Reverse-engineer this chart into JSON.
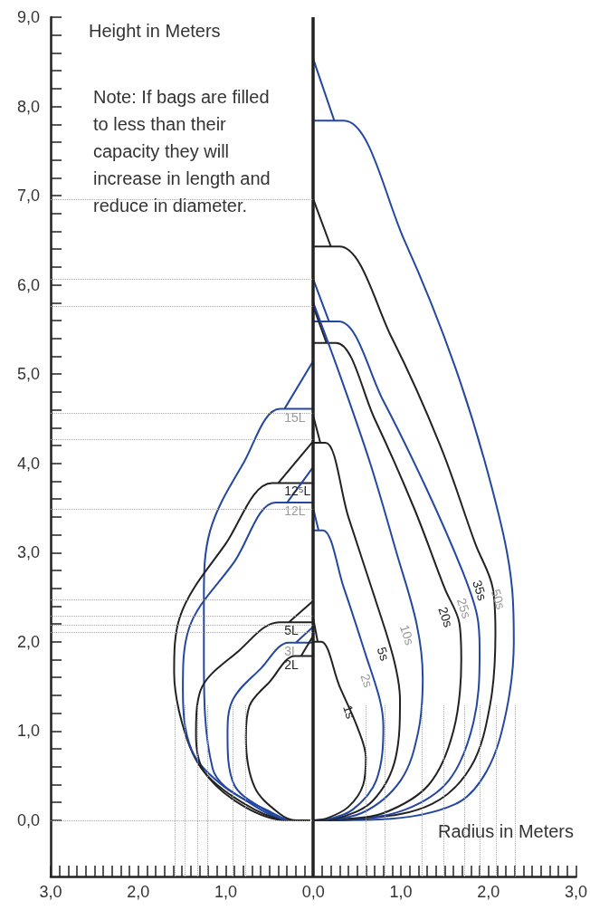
{
  "chart_data": {
    "type": "line",
    "ylabel": "Height in Meters",
    "xlabel": "Radius in Meters",
    "annotations": [
      "Note: If bags are filled to less than their capacity they will increase in length and reduce in diameter."
    ],
    "xlim": [
      -3,
      3
    ],
    "ylim": [
      -0.63,
      9
    ],
    "xticks": [
      {
        "value": -3,
        "label": "3,0"
      },
      {
        "value": -2.9,
        "label": null
      },
      {
        "value": -2.8,
        "label": null
      },
      {
        "value": -2.7,
        "label": null
      },
      {
        "value": -2.6,
        "label": null
      },
      {
        "value": -2.5,
        "label": null
      },
      {
        "value": -2.4,
        "label": null
      },
      {
        "value": -2.3,
        "label": null
      },
      {
        "value": -2.2,
        "label": null
      },
      {
        "value": -2.1,
        "label": null
      },
      {
        "value": -2,
        "label": "2,0"
      },
      {
        "value": -1.9,
        "label": null
      },
      {
        "value": -1.8,
        "label": null
      },
      {
        "value": -1.7,
        "label": null
      },
      {
        "value": -1.6,
        "label": null
      },
      {
        "value": -1.5,
        "label": null
      },
      {
        "value": -1.4,
        "label": null
      },
      {
        "value": -1.3,
        "label": null
      },
      {
        "value": -1.2,
        "label": null
      },
      {
        "value": -1.1,
        "label": null
      },
      {
        "value": -1,
        "label": "1,0"
      },
      {
        "value": -0.9,
        "label": null
      },
      {
        "value": -0.8,
        "label": null
      },
      {
        "value": -0.7,
        "label": null
      },
      {
        "value": -0.6,
        "label": null
      },
      {
        "value": -0.5,
        "label": null
      },
      {
        "value": -0.4,
        "label": null
      },
      {
        "value": -0.3,
        "label": null
      },
      {
        "value": -0.2,
        "label": null
      },
      {
        "value": -0.1,
        "label": null
      },
      {
        "value": 0,
        "label": "0,0"
      },
      {
        "value": 0.1,
        "label": null
      },
      {
        "value": 0.2,
        "label": null
      },
      {
        "value": 0.3,
        "label": null
      },
      {
        "value": 0.4,
        "label": null
      },
      {
        "value": 0.5,
        "label": null
      },
      {
        "value": 0.6,
        "label": null
      },
      {
        "value": 0.7,
        "label": null
      },
      {
        "value": 0.8,
        "label": null
      },
      {
        "value": 0.9,
        "label": null
      },
      {
        "value": 1,
        "label": "1,0"
      },
      {
        "value": 1.1,
        "label": null
      },
      {
        "value": 1.2,
        "label": null
      },
      {
        "value": 1.3,
        "label": null
      },
      {
        "value": 1.4,
        "label": null
      },
      {
        "value": 1.5,
        "label": null
      },
      {
        "value": 1.6,
        "label": null
      },
      {
        "value": 1.7,
        "label": null
      },
      {
        "value": 1.8,
        "label": null
      },
      {
        "value": 1.9,
        "label": null
      },
      {
        "value": 2,
        "label": "2,0"
      },
      {
        "value": 2.1,
        "label": null
      },
      {
        "value": 2.2,
        "label": null
      },
      {
        "value": 2.3,
        "label": null
      },
      {
        "value": 2.4,
        "label": null
      },
      {
        "value": 2.5,
        "label": null
      },
      {
        "value": 2.6,
        "label": null
      },
      {
        "value": 2.7,
        "label": null
      },
      {
        "value": 2.8,
        "label": null
      },
      {
        "value": 2.9,
        "label": null
      },
      {
        "value": 3,
        "label": "3,0"
      }
    ],
    "yticks": [
      {
        "value": 0,
        "label": "0,0"
      },
      {
        "value": 0.2,
        "label": null
      },
      {
        "value": 0.4,
        "label": null
      },
      {
        "value": 0.6,
        "label": null
      },
      {
        "value": 0.8,
        "label": null
      },
      {
        "value": 1,
        "label": "1,0"
      },
      {
        "value": 1.2,
        "label": null
      },
      {
        "value": 1.4,
        "label": null
      },
      {
        "value": 1.6,
        "label": null
      },
      {
        "value": 1.8,
        "label": null
      },
      {
        "value": 2,
        "label": "2,0"
      },
      {
        "value": 2.2,
        "label": null
      },
      {
        "value": 2.4,
        "label": null
      },
      {
        "value": 2.6,
        "label": null
      },
      {
        "value": 2.8,
        "label": null
      },
      {
        "value": 3,
        "label": "3,0"
      },
      {
        "value": 3.2,
        "label": null
      },
      {
        "value": 3.4,
        "label": null
      },
      {
        "value": 3.6,
        "label": null
      },
      {
        "value": 3.8,
        "label": null
      },
      {
        "value": 4,
        "label": "4,0"
      },
      {
        "value": 4.2,
        "label": null
      },
      {
        "value": 4.4,
        "label": null
      },
      {
        "value": 4.6,
        "label": null
      },
      {
        "value": 4.8,
        "label": null
      },
      {
        "value": 5,
        "label": "5,0"
      },
      {
        "value": 5.2,
        "label": null
      },
      {
        "value": 5.4,
        "label": null
      },
      {
        "value": 5.6,
        "label": null
      },
      {
        "value": 5.8,
        "label": null
      },
      {
        "value": 6,
        "label": "6,0"
      },
      {
        "value": 6.2,
        "label": null
      },
      {
        "value": 6.4,
        "label": null
      },
      {
        "value": 6.6,
        "label": null
      },
      {
        "value": 6.8,
        "label": null
      },
      {
        "value": 7,
        "label": "7,0"
      },
      {
        "value": 7.2,
        "label": null
      },
      {
        "value": 7.4,
        "label": null
      },
      {
        "value": 7.6,
        "label": null
      },
      {
        "value": 7.8,
        "label": null
      },
      {
        "value": 8,
        "label": "8,0"
      },
      {
        "value": 8.2,
        "label": null
      },
      {
        "value": 8.4,
        "label": null
      },
      {
        "value": 8.6,
        "label": null
      },
      {
        "value": 8.8,
        "label": null
      },
      {
        "value": 9,
        "label": "9,0"
      }
    ],
    "series": [
      {
        "name": "50s",
        "color": "#2447a0",
        "x": [
          0,
          0.24,
          0,
          0.35,
          1.04,
          1.62,
          2.06,
          2.27,
          2.29,
          2.2,
          1.98,
          1.62,
          0.76,
          0
        ],
        "values": [
          8.53,
          7.84,
          7.84,
          7.84,
          6.5,
          5.08,
          3.65,
          2.6,
          2.0,
          1.2,
          0.55,
          0.18,
          0.01,
          0
        ]
      },
      {
        "name": "35s",
        "color": "#222222",
        "x": [
          0,
          0.2,
          0,
          0.3,
          0.9,
          1.45,
          1.85,
          2.05,
          2.08,
          2.02,
          1.8,
          1.35,
          0.6,
          0
        ],
        "values": [
          6.96,
          6.43,
          6.43,
          6.43,
          5.4,
          4.2,
          3.1,
          2.6,
          2.1,
          1.3,
          0.6,
          0.18,
          0.02,
          0
        ]
      },
      {
        "name": "25s",
        "color": "#2447a0",
        "x": [
          0,
          0.18,
          0,
          0.29,
          0.8,
          1.3,
          1.7,
          1.87,
          1.9,
          1.83,
          1.55,
          1.05,
          0.4,
          0
        ],
        "values": [
          6.06,
          5.59,
          5.59,
          5.59,
          4.7,
          3.7,
          2.8,
          2.3,
          1.9,
          1.1,
          0.45,
          0.12,
          0.01,
          0
        ]
      },
      {
        "name": "20s",
        "color": "#222222",
        "x": [
          0,
          0.15,
          0,
          0.26,
          0.7,
          1.15,
          1.5,
          1.67,
          1.69,
          1.6,
          1.32,
          0.8,
          0.3,
          0
        ],
        "values": [
          5.76,
          5.35,
          5.35,
          5.35,
          4.5,
          3.5,
          2.6,
          2.2,
          1.8,
          1.0,
          0.4,
          0.08,
          0.01,
          0
        ]
      },
      {
        "name": "10s",
        "color": "#2447a0",
        "x": [
          0,
          0.3,
          0.65,
          0.95,
          1.18,
          1.25,
          1.2,
          1.0,
          0.55,
          0
        ],
        "values": [
          5.8,
          5.0,
          4.0,
          3.0,
          2.2,
          1.6,
          1.0,
          0.45,
          0.08,
          0
        ]
      },
      {
        "name": "5s",
        "color": "#222222",
        "x": [
          0,
          0.08,
          0,
          0.14,
          0.4,
          0.7,
          0.92,
          0.99,
          0.94,
          0.68,
          0.3,
          0
        ],
        "values": [
          4.53,
          4.23,
          4.23,
          4.23,
          3.4,
          2.5,
          1.8,
          1.35,
          0.7,
          0.22,
          0.03,
          0
        ]
      },
      {
        "name": "2s",
        "color": "#2447a0",
        "x": [
          0,
          0.06,
          0,
          0.11,
          0.35,
          0.6,
          0.76,
          0.8,
          0.72,
          0.45,
          0.15,
          0
        ],
        "values": [
          3.49,
          3.25,
          3.25,
          3.25,
          2.6,
          1.85,
          1.35,
          1.05,
          0.45,
          0.12,
          0.01,
          0
        ]
      },
      {
        "name": "1s",
        "color": "#222222",
        "x": [
          0,
          0.05,
          0,
          0.09,
          0.3,
          0.5,
          0.6,
          0.57,
          0.4,
          0.15,
          0
        ],
        "values": [
          2.26,
          2.0,
          2.0,
          2.0,
          1.5,
          1.05,
          0.7,
          0.4,
          0.15,
          0.02,
          0
        ]
      },
      {
        "name": "15L",
        "color": "#2447a0",
        "x": [
          0,
          -0.33,
          0,
          -0.38,
          -0.8,
          -1.18,
          -1.25,
          -1.25,
          -1.15,
          -0.67,
          -0.25,
          -0.04
        ],
        "values": [
          5.15,
          4.61,
          4.61,
          4.61,
          4.0,
          3.24,
          2.5,
          1.84,
          0.58,
          0.16,
          0,
          0
        ]
      },
      {
        "name": "12⁵L",
        "color": "#222222",
        "x": [
          0,
          -0.4,
          0,
          -0.47,
          -1.0,
          -1.52,
          -1.59,
          -1.46,
          -1.22,
          -0.67,
          -0.25,
          -0.04
        ],
        "values": [
          4.25,
          3.78,
          3.78,
          3.78,
          3.1,
          2.29,
          1.66,
          0.96,
          0.51,
          0.12,
          0,
          0
        ]
      },
      {
        "name": "12L",
        "color": "#2447a0",
        "x": [
          0,
          -0.3,
          0,
          -0.43,
          -0.9,
          -1.42,
          -1.49,
          -1.39,
          -1.01,
          -0.48,
          -0.25,
          -0.04
        ],
        "values": [
          3.96,
          3.56,
          3.56,
          3.56,
          2.9,
          2.15,
          1.49,
          0.79,
          0.37,
          0.09,
          0,
          0
        ]
      },
      {
        "name": "5L",
        "color": "#222222",
        "x": [
          0,
          -0.28,
          0,
          -0.39,
          -0.85,
          -1.29,
          -1.34,
          -1.25,
          -0.8,
          -0.3,
          -0.04
        ],
        "values": [
          2.46,
          2.22,
          2.22,
          2.22,
          1.9,
          1.45,
          0.96,
          0.55,
          0.16,
          0,
          0
        ]
      },
      {
        "name": "3L",
        "color": "#2447a0",
        "x": [
          0,
          -0.2,
          0,
          -0.28,
          -0.6,
          -0.92,
          -0.98,
          -0.91,
          -0.56,
          -0.25,
          -0.04
        ],
        "values": [
          2.17,
          1.99,
          1.99,
          1.99,
          1.7,
          1.35,
          0.96,
          0.41,
          0.12,
          0,
          0
        ]
      },
      {
        "name": "2L",
        "color": "#222222",
        "x": [
          0,
          -0.14,
          0,
          -0.21,
          -0.5,
          -0.73,
          -0.77,
          -0.67,
          -0.38,
          -0.2,
          -0.04
        ],
        "values": [
          2.07,
          1.84,
          1.84,
          1.84,
          1.55,
          1.28,
          0.93,
          0.37,
          0.07,
          0,
          0
        ]
      }
    ],
    "ref_lines": [
      {
        "axis": "x",
        "value": 0,
        "color": "#222222",
        "line_style": "solid"
      },
      {
        "axis": "y",
        "value": 0,
        "color": "#aaaaaa",
        "line_style": "dotted"
      },
      {
        "axis": "y",
        "value": 6.96,
        "color": "#aaaaaa",
        "line_style": "dotted"
      },
      {
        "axis": "y",
        "value": 6.06,
        "color": "#aaaaaa",
        "line_style": "dotted"
      },
      {
        "axis": "y",
        "value": 5.76,
        "color": "#aaaaaa",
        "line_style": "dotted"
      },
      {
        "axis": "y",
        "value": 4.56,
        "color": "#aaaaaa",
        "line_style": "dotted"
      },
      {
        "axis": "y",
        "value": 4.27,
        "color": "#aaaaaa",
        "line_style": "dotted"
      },
      {
        "axis": "y",
        "value": 3.49,
        "color": "#aaaaaa",
        "line_style": "dotted"
      },
      {
        "axis": "y",
        "value": 2.47,
        "color": "#aaaaaa",
        "line_style": "dotted"
      },
      {
        "axis": "y",
        "value": 2.29,
        "color": "#aaaaaa",
        "line_style": "dotted"
      },
      {
        "axis": "y",
        "value": 2.19,
        "color": "#aaaaaa",
        "line_style": "dotted"
      },
      {
        "axis": "y",
        "value": 2.11,
        "color": "#aaaaaa",
        "line_style": "dotted"
      },
      {
        "axis": "x",
        "value": -1.58,
        "color": "#aaaaaa",
        "line_style": "dotted"
      },
      {
        "axis": "x",
        "value": -1.47,
        "color": "#aaaaaa",
        "line_style": "dotted"
      },
      {
        "axis": "x",
        "value": -1.32,
        "color": "#aaaaaa",
        "line_style": "dotted"
      },
      {
        "axis": "x",
        "value": -1.21,
        "color": "#aaaaaa",
        "line_style": "dotted"
      },
      {
        "axis": "x",
        "value": -0.92,
        "color": "#aaaaaa",
        "line_style": "dotted"
      },
      {
        "axis": "x",
        "value": -0.78,
        "color": "#aaaaaa",
        "line_style": "dotted"
      },
      {
        "axis": "x",
        "value": 0.6,
        "color": "#aaaaaa",
        "line_style": "dotted"
      },
      {
        "axis": "x",
        "value": 0.82,
        "color": "#aaaaaa",
        "line_style": "dotted"
      },
      {
        "axis": "x",
        "value": 1.24,
        "color": "#aaaaaa",
        "line_style": "dotted"
      },
      {
        "axis": "x",
        "value": 1.49,
        "color": "#aaaaaa",
        "line_style": "dotted"
      },
      {
        "axis": "x",
        "value": 1.73,
        "color": "#aaaaaa",
        "line_style": "dotted"
      },
      {
        "axis": "x",
        "value": 1.9,
        "color": "#aaaaaa",
        "line_style": "dotted"
      },
      {
        "axis": "x",
        "value": 2.09,
        "color": "#aaaaaa",
        "line_style": "dotted"
      },
      {
        "axis": "x",
        "value": 2.3,
        "color": "#aaaaaa",
        "line_style": "dotted"
      }
    ]
  }
}
